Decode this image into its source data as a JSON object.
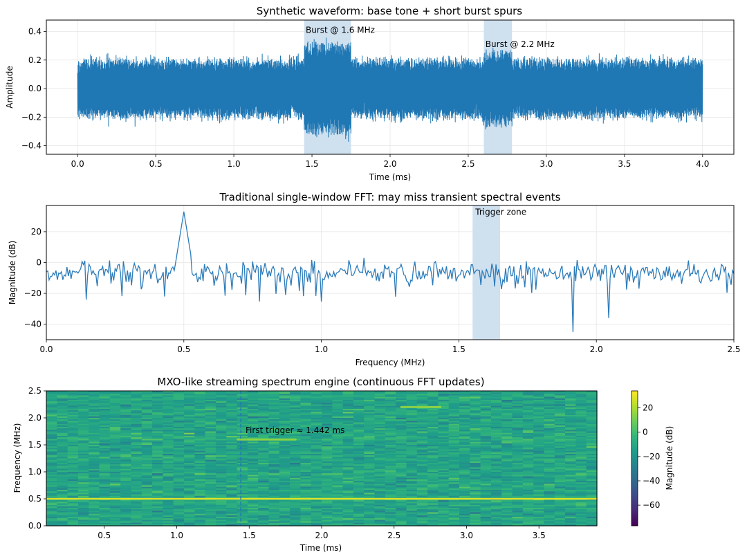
{
  "colors": {
    "series": "#1f77b4",
    "line": "#2b7bba",
    "band": "#cfe0ef",
    "grid": "#e6e6e6",
    "viridis": [
      "#440154",
      "#482878",
      "#3e4a89",
      "#31688e",
      "#26828e",
      "#1f9e89",
      "#35b779",
      "#6ece58",
      "#b5de2b",
      "#fde725"
    ]
  },
  "chart_data": [
    {
      "type": "line",
      "title": "Synthetic waveform: base tone + short burst spurs",
      "xlabel": "Time (ms)",
      "ylabel": "Amplitude",
      "xlim": [
        -0.2,
        4.2
      ],
      "ylim": [
        -0.46,
        0.48
      ],
      "xticks": [
        0.0,
        0.5,
        1.0,
        1.5,
        2.0,
        2.5,
        3.0,
        3.5,
        4.0
      ],
      "xtick_labels": [
        "0.0",
        "0.5",
        "1.0",
        "1.5",
        "2.0",
        "2.5",
        "3.0",
        "3.5",
        "4.0"
      ],
      "yticks": [
        -0.4,
        -0.2,
        0.0,
        0.2,
        0.4
      ],
      "ytick_labels": [
        "−0.4",
        "−0.2",
        "0.0",
        "0.2",
        "0.4"
      ],
      "grid": true,
      "signal": {
        "t_start": 0.0,
        "t_end": 4.0,
        "base_envelope": 0.22,
        "burst_envelope_1": 0.35,
        "burst_envelope_2": 0.28
      },
      "bands": [
        {
          "x0": 1.45,
          "x1": 1.75
        },
        {
          "x0": 2.6,
          "x1": 2.78
        }
      ],
      "annotations": [
        {
          "text": "Burst @ 1.6 MHz",
          "x": 1.46,
          "y": 0.39
        },
        {
          "text": "Burst @ 2.2 MHz",
          "x": 2.61,
          "y": 0.29
        }
      ]
    },
    {
      "type": "line",
      "title": "Traditional single-window FFT: may miss transient spectral events",
      "xlabel": "Frequency (MHz)",
      "ylabel": "Magnitude (dB)",
      "xlim": [
        0.0,
        2.5
      ],
      "ylim": [
        -50,
        37
      ],
      "xticks": [
        0.0,
        0.5,
        1.0,
        1.5,
        2.0,
        2.5
      ],
      "xtick_labels": [
        "0.0",
        "0.5",
        "1.0",
        "1.5",
        "2.0",
        "2.5"
      ],
      "yticks": [
        -40,
        -20,
        0,
        20
      ],
      "ytick_labels": [
        "−40",
        "−20",
        "0",
        "20"
      ],
      "grid": true,
      "peak": {
        "x": 0.5,
        "y": 33
      },
      "dips": [
        {
          "x": 1.915,
          "y": -45
        },
        {
          "x": 2.045,
          "y": -36
        },
        {
          "x": 0.145,
          "y": -24
        },
        {
          "x": 0.43,
          "y": -22
        }
      ],
      "bands": [
        {
          "x0": 1.55,
          "x1": 1.65
        }
      ],
      "annotations": [
        {
          "text": "Trigger zone",
          "x": 1.56,
          "y": 31
        }
      ]
    },
    {
      "type": "heatmap",
      "title": "MXO-like streaming spectrum engine (continuous FFT updates)",
      "xlabel": "Time (ms)",
      "ylabel": "Frequency (MHz)",
      "xlim": [
        0.1,
        3.9
      ],
      "ylim": [
        0.0,
        2.5
      ],
      "xticks": [
        0.5,
        1.0,
        1.5,
        2.0,
        2.5,
        3.0,
        3.5
      ],
      "xtick_labels": [
        "0.5",
        "1.0",
        "1.5",
        "2.0",
        "2.5",
        "3.0",
        "3.5"
      ],
      "yticks": [
        0.0,
        0.5,
        1.0,
        1.5,
        2.0,
        2.5
      ],
      "ytick_labels": [
        "0.0",
        "0.5",
        "1.0",
        "1.5",
        "2.0",
        "2.5"
      ],
      "tone_line": {
        "freq": 0.5
      },
      "burst_lines": [
        {
          "freq": 1.6,
          "t0": 1.42,
          "t1": 1.82
        },
        {
          "freq": 2.2,
          "t0": 2.55,
          "t1": 2.82
        }
      ],
      "trigger_line": {
        "t": 1.442
      },
      "annotations": [
        {
          "text": "First trigger ≈ 1.442 ms",
          "x": 1.475,
          "y": 1.72
        }
      ],
      "colorbar": {
        "label": "Magnitude (dB)",
        "range": [
          -77,
          34
        ],
        "ticks": [
          20,
          0,
          -20,
          -40,
          -60
        ],
        "tick_labels": [
          "20",
          "0",
          "−20",
          "−40",
          "−60"
        ]
      }
    }
  ]
}
